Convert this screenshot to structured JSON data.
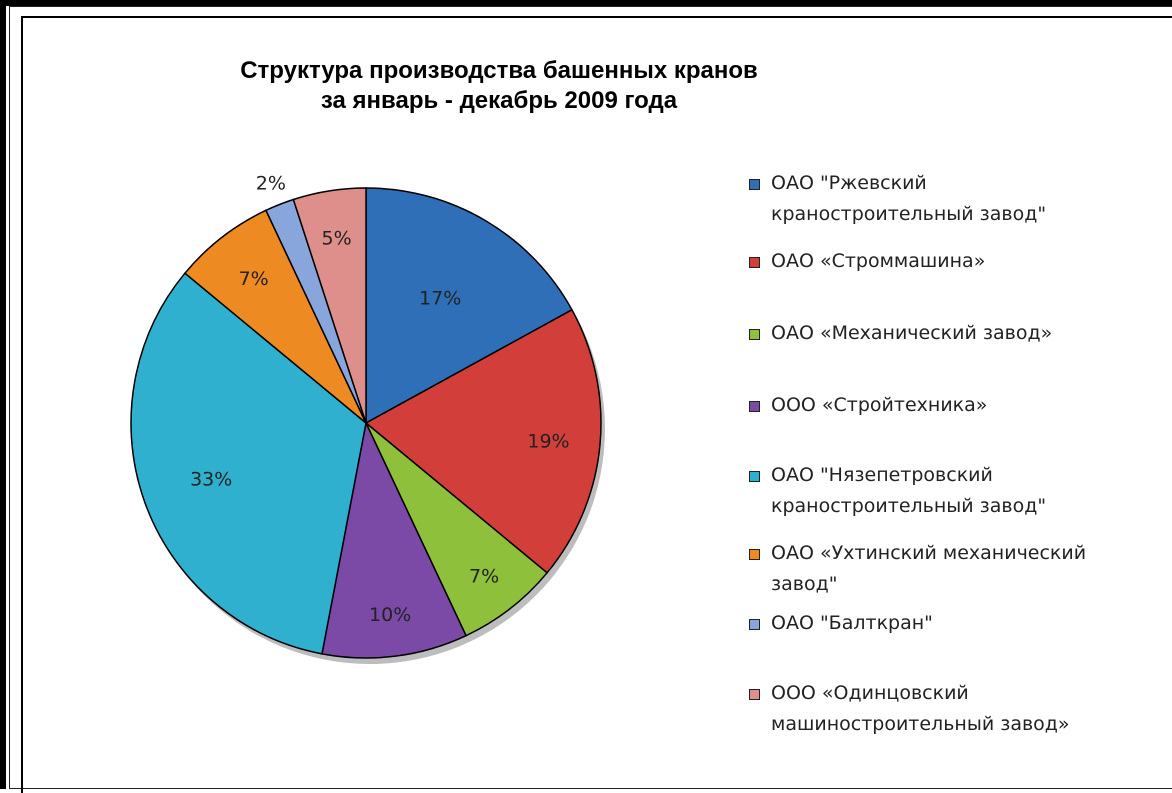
{
  "chart_data": {
    "type": "pie",
    "title": [
      "Структура производства башенных кранов",
      "за январь - декабрь 2009 года"
    ],
    "slices": [
      {
        "label": "ОАО \"Ржевский\nкраностроительный завод\"",
        "value": 17,
        "pct_label": "17%",
        "color": "#2f6fb8"
      },
      {
        "label": "ОАО «Строммашина»",
        "value": 19,
        "pct_label": "19%",
        "color": "#d23f3b"
      },
      {
        "label": "ОАО «Механический завод»",
        "value": 7,
        "pct_label": "7%",
        "color": "#8fc03c"
      },
      {
        "label": "ООО «Стройтехника»",
        "value": 10,
        "pct_label": "10%",
        "color": "#7a4aa6"
      },
      {
        "label": "ОАО \"Нязепетровский\nкраностроительный завод\"",
        "value": 33,
        "pct_label": "33%",
        "color": "#2fb0cf"
      },
      {
        "label": "ОАО «Ухтинский механический\nзавод\"",
        "value": 7,
        "pct_label": "7%",
        "color": "#ee8a22"
      },
      {
        "label": "ОАО \"Балткран\"",
        "value": 2,
        "pct_label": "2%",
        "color": "#88a6dc"
      },
      {
        "label": "ООО «Одинцовский\nмашиностроительный завод»",
        "value": 5,
        "pct_label": "5%",
        "color": "#de8e8b"
      }
    ],
    "legend_position": "right"
  }
}
